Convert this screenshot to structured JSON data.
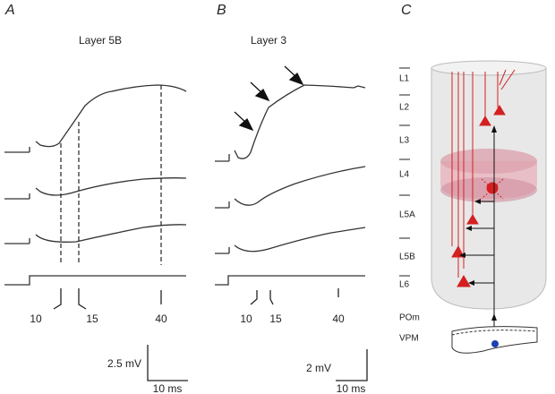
{
  "panels": [
    {
      "letter": "A",
      "title": "Layer 5B",
      "time_labels": [
        "10",
        "15",
        "40"
      ],
      "scale": {
        "amplitude": "2.5 mV",
        "duration": "10 ms"
      }
    },
    {
      "letter": "B",
      "title": "Layer 3",
      "time_labels": [
        "10",
        "15",
        "40"
      ],
      "scale": {
        "amplitude": "2 mV",
        "duration": "10 ms"
      }
    },
    {
      "letter": "C",
      "layers": [
        "L1",
        "L2",
        "L3",
        "L4",
        "L5A",
        "L5B",
        "L6"
      ],
      "thalamus": [
        "POm",
        "VPM"
      ]
    }
  ]
}
